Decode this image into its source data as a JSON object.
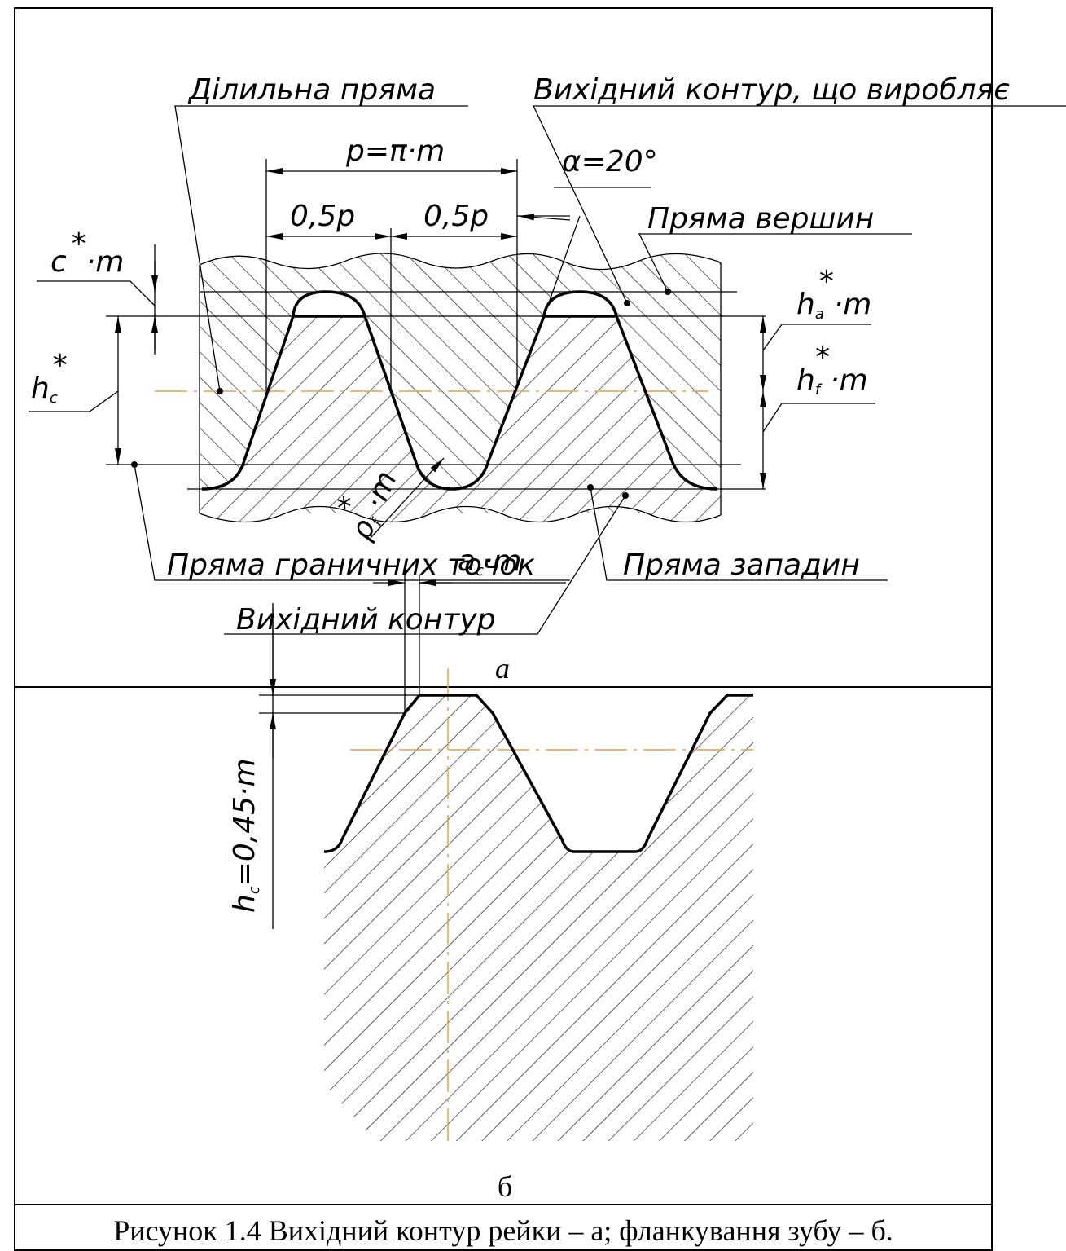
{
  "panel_a": {
    "pitch_line": "Ділильна пряма",
    "generating_contour": "Вихідний контур, що виробляє",
    "pitch": "p=π·m",
    "angle": "α=20°",
    "half_pitch_left": "0,5p",
    "half_pitch_right": "0,5p",
    "tip_line": "Пряма вершин",
    "clearance": {
      "base": "c",
      "sup": "*",
      "rest": "·m"
    },
    "addendum": {
      "base": "h",
      "sub": "a",
      "sup": "*",
      "rest": "·m"
    },
    "dedendum": {
      "base": "h",
      "sub": "f",
      "sup": "*",
      "rest": "·m"
    },
    "limit_height": {
      "base": "h",
      "sub": "c",
      "sup": "*"
    },
    "fillet_radius": {
      "base": "ρ",
      "sub": "f",
      "sup": "*",
      "rest": "·m"
    },
    "limit_points_line": "Пряма граничних точок",
    "root_line": "Пряма западин",
    "basic_contour": "Вихідний контур",
    "label": "а"
  },
  "panel_b": {
    "chamfer_width": {
      "base": "a",
      "sub": "c",
      "rest": "·m"
    },
    "chamfer_height": {
      "base": "h",
      "sub": "c",
      "rest": "=0,45·m"
    },
    "label": "б"
  },
  "caption": "Рисунок 1.4 Вихідний контур рейки – а; фланкування зубу – б."
}
